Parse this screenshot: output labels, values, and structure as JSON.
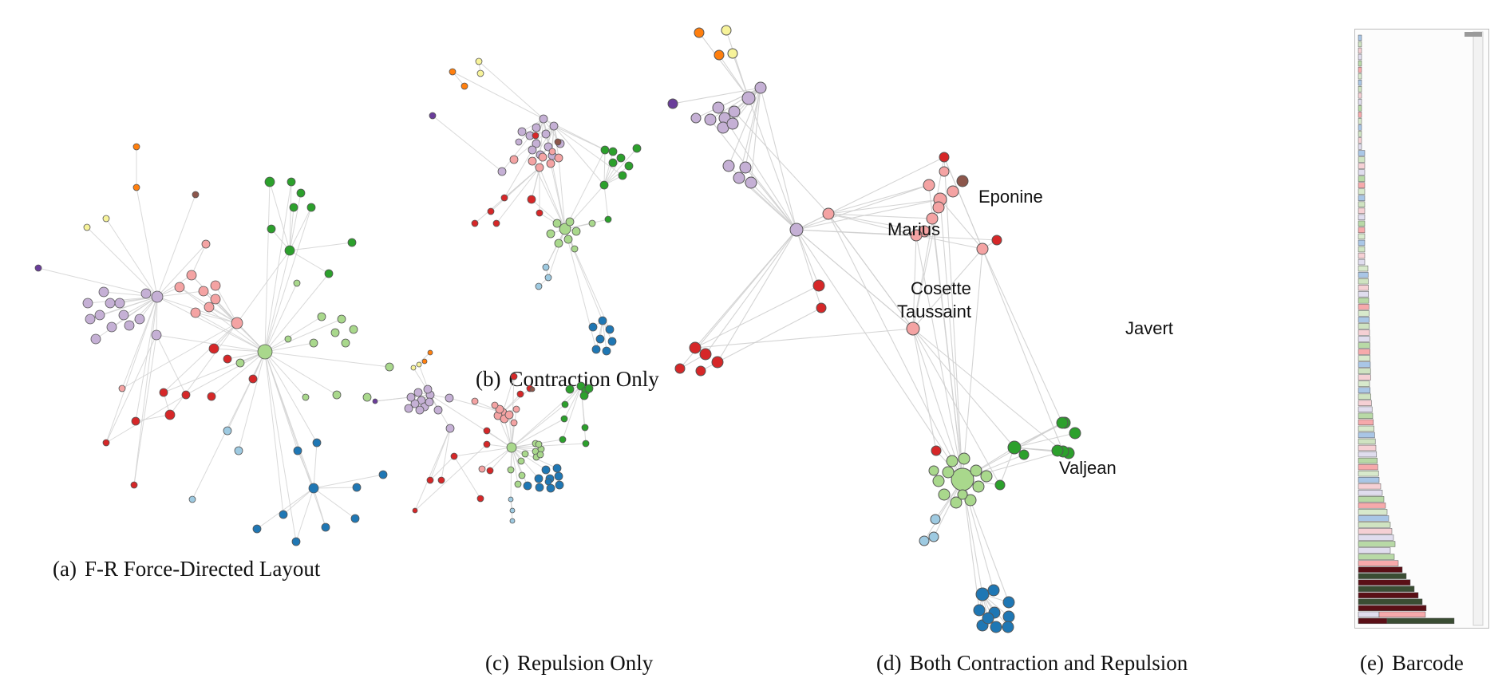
{
  "panels": {
    "a": {
      "tag": "(a)",
      "caption": "F-R Force-Directed Layout"
    },
    "b": {
      "tag": "(b)",
      "caption": "Contraction Only"
    },
    "c": {
      "tag": "(c)",
      "caption": "Repulsion Only"
    },
    "d": {
      "tag": "(d)",
      "caption": "Both Contraction and Repulsion",
      "labels": {
        "eponine": "Eponine",
        "marius": "Marius",
        "cosette": "Cosette",
        "taussaint": "Taussaint",
        "javert": "Javert",
        "valjean": "Valjean"
      }
    },
    "e": {
      "tag": "(e)",
      "caption": "Barcode"
    }
  },
  "colors": {
    "lavender": "#c5b0d5",
    "salmon": "#f4a3a3",
    "red": "#d62728",
    "green": "#2ca02c",
    "lightgreen": "#a9d88c",
    "blue": "#1f77b4",
    "lightblue": "#9ecae1",
    "orange": "#ff7f0e",
    "yellow": "#f7f39a",
    "purple": "#6a3d9a",
    "brown": "#8c564b",
    "edge": "#cfcfcf",
    "darkred": "#5a0f16",
    "darkgreen": "#3a4d33"
  },
  "icons": {
    "scrollbar": "scrollbar-thumb-icon"
  }
}
